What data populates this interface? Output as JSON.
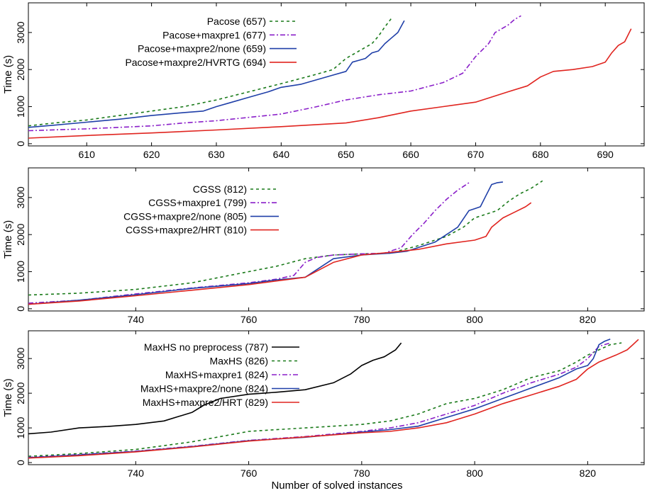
{
  "xlabel": "Number of solved instances",
  "chart_data": [
    {
      "type": "line",
      "ylabel": "Time (s)",
      "xlim": [
        601,
        696
      ],
      "ylim": [
        -60,
        3800
      ],
      "xticks": [
        610,
        620,
        630,
        640,
        650,
        660,
        670,
        680,
        690
      ],
      "yticks": [
        0,
        1000,
        2000,
        3000
      ],
      "legend": "top-left",
      "series": [
        {
          "name": "Pacose (657)",
          "color": "#1a7a1a",
          "dash": "4,4",
          "x": [
            601,
            605,
            610,
            615,
            620,
            625,
            630,
            635,
            640,
            645,
            648,
            650,
            652,
            654,
            655,
            656,
            657
          ],
          "y": [
            480,
            560,
            640,
            760,
            880,
            1000,
            1180,
            1400,
            1620,
            1850,
            2000,
            2300,
            2500,
            2700,
            2900,
            3150,
            3380
          ]
        },
        {
          "name": "Pacose+maxpre1 (677)",
          "color": "#8a1fc9",
          "dash": "7,3,2,3",
          "x": [
            601,
            610,
            620,
            625,
            630,
            640,
            645,
            650,
            655,
            660,
            665,
            668,
            670,
            672,
            673,
            675,
            676,
            677
          ],
          "y": [
            350,
            400,
            480,
            560,
            620,
            800,
            980,
            1180,
            1320,
            1420,
            1650,
            1900,
            2350,
            2700,
            3000,
            3200,
            3350,
            3450
          ]
        },
        {
          "name": "Pacose+maxpre2/none (659)",
          "color": "#1f3fa8",
          "dash": "",
          "x": [
            601,
            605,
            610,
            615,
            620,
            625,
            628,
            630,
            632,
            635,
            638,
            640,
            643,
            645,
            648,
            650,
            651,
            652,
            653,
            654,
            655,
            656,
            657,
            658,
            659
          ],
          "y": [
            440,
            500,
            580,
            660,
            760,
            840,
            880,
            1000,
            1100,
            1250,
            1400,
            1520,
            1600,
            1700,
            1850,
            1950,
            2200,
            2250,
            2300,
            2450,
            2500,
            2700,
            2850,
            3000,
            3320
          ]
        },
        {
          "name": "Pacose+maxpre2/HVRTG (694)",
          "color": "#e0241f",
          "dash": "",
          "x": [
            601,
            610,
            620,
            630,
            640,
            650,
            655,
            660,
            665,
            670,
            675,
            678,
            680,
            682,
            685,
            688,
            690,
            691,
            692,
            693,
            694
          ],
          "y": [
            150,
            220,
            290,
            370,
            460,
            560,
            700,
            880,
            1000,
            1120,
            1400,
            1560,
            1800,
            1950,
            2000,
            2080,
            2200,
            2450,
            2650,
            2750,
            3100
          ]
        }
      ]
    },
    {
      "type": "line",
      "ylabel": "Time (s)",
      "xlim": [
        721,
        830
      ],
      "ylim": [
        -60,
        3800
      ],
      "xticks": [
        740,
        760,
        780,
        800,
        820
      ],
      "yticks": [
        0,
        1000,
        2000,
        3000
      ],
      "legend": "top-left",
      "series": [
        {
          "name": "CGSS (812)",
          "color": "#1a7a1a",
          "dash": "4,4",
          "x": [
            721,
            730,
            740,
            750,
            760,
            765,
            770,
            775,
            780,
            785,
            790,
            795,
            798,
            800,
            804,
            806,
            808,
            810,
            812
          ],
          "y": [
            370,
            420,
            520,
            700,
            1000,
            1150,
            1350,
            1450,
            1480,
            1500,
            1700,
            1950,
            2200,
            2450,
            2650,
            2900,
            3100,
            3250,
            3450
          ]
        },
        {
          "name": "CGSS+maxpre1 (799)",
          "color": "#8a1fc9",
          "dash": "7,3,2,3",
          "x": [
            721,
            730,
            740,
            750,
            760,
            765,
            768,
            770,
            772,
            775,
            780,
            784,
            787,
            789,
            791,
            793,
            795,
            797,
            798,
            799
          ],
          "y": [
            150,
            230,
            400,
            560,
            700,
            800,
            900,
            1250,
            1380,
            1450,
            1480,
            1500,
            1650,
            2000,
            2300,
            2650,
            2950,
            3200,
            3300,
            3400
          ]
        },
        {
          "name": "CGSS+maxpre2/none (805)",
          "color": "#1f3fa8",
          "dash": "",
          "x": [
            721,
            730,
            740,
            750,
            760,
            765,
            770,
            772,
            775,
            780,
            785,
            788,
            790,
            793,
            795,
            797,
            799,
            800,
            801,
            802,
            803,
            804,
            805
          ],
          "y": [
            120,
            230,
            380,
            550,
            680,
            780,
            850,
            1050,
            1350,
            1450,
            1500,
            1550,
            1650,
            1800,
            2000,
            2200,
            2650,
            2700,
            2750,
            3050,
            3350,
            3400,
            3420
          ]
        },
        {
          "name": "CGSS+maxpre2/HRT (810)",
          "color": "#e0241f",
          "dash": "",
          "x": [
            721,
            730,
            740,
            750,
            760,
            765,
            770,
            775,
            780,
            785,
            790,
            795,
            800,
            802,
            803,
            805,
            807,
            809,
            810
          ],
          "y": [
            120,
            210,
            350,
            500,
            650,
            750,
            850,
            1250,
            1450,
            1520,
            1600,
            1750,
            1850,
            1950,
            2200,
            2450,
            2600,
            2750,
            2860
          ]
        }
      ]
    },
    {
      "type": "line",
      "ylabel": "Time (s)",
      "xlim": [
        721,
        830
      ],
      "ylim": [
        -60,
        3800
      ],
      "xticks": [
        740,
        760,
        780,
        800,
        820
      ],
      "yticks": [
        0,
        1000,
        2000,
        3000
      ],
      "legend": "top-left",
      "series": [
        {
          "name": "MaxHS no preprocess (787)",
          "color": "#000000",
          "dash": "",
          "x": [
            721,
            725,
            730,
            735,
            740,
            745,
            750,
            752,
            755,
            760,
            765,
            770,
            775,
            778,
            780,
            782,
            784,
            786,
            787
          ],
          "y": [
            830,
            880,
            1000,
            1040,
            1100,
            1200,
            1450,
            1650,
            1850,
            1970,
            2030,
            2100,
            2300,
            2550,
            2800,
            2950,
            3050,
            3250,
            3450
          ]
        },
        {
          "name": "MaxHS (826)",
          "color": "#1a7a1a",
          "dash": "4,4",
          "x": [
            721,
            730,
            740,
            750,
            760,
            770,
            780,
            785,
            790,
            795,
            800,
            805,
            810,
            815,
            818,
            820,
            822,
            824,
            826
          ],
          "y": [
            180,
            260,
            380,
            600,
            900,
            1000,
            1100,
            1200,
            1400,
            1700,
            1850,
            2100,
            2450,
            2650,
            2900,
            3100,
            3250,
            3400,
            3450
          ]
        },
        {
          "name": "MaxHS+maxpre1 (824)",
          "color": "#8a1fc9",
          "dash": "7,3,2,3",
          "x": [
            721,
            730,
            740,
            750,
            760,
            770,
            780,
            785,
            790,
            795,
            800,
            805,
            810,
            815,
            818,
            820,
            822,
            824
          ],
          "y": [
            150,
            230,
            330,
            470,
            640,
            750,
            900,
            1000,
            1150,
            1400,
            1650,
            2000,
            2300,
            2550,
            2750,
            3000,
            3350,
            3450
          ]
        },
        {
          "name": "MaxHS+maxpre2/none (824)",
          "color": "#1f3fa8",
          "dash": "",
          "x": [
            721,
            730,
            740,
            750,
            760,
            770,
            780,
            785,
            790,
            795,
            800,
            805,
            810,
            815,
            818,
            820,
            821,
            822,
            823,
            824
          ],
          "y": [
            140,
            220,
            320,
            460,
            630,
            730,
            880,
            950,
            1050,
            1300,
            1550,
            1850,
            2150,
            2450,
            2700,
            2800,
            3000,
            3400,
            3500,
            3560
          ]
        },
        {
          "name": "MaxHS+maxpre2/HRT (829)",
          "color": "#e0241f",
          "dash": "",
          "x": [
            721,
            730,
            740,
            750,
            760,
            770,
            780,
            785,
            790,
            795,
            800,
            805,
            810,
            815,
            818,
            820,
            822,
            825,
            827,
            828,
            829
          ],
          "y": [
            130,
            200,
            310,
            450,
            620,
            740,
            860,
            900,
            1000,
            1150,
            1400,
            1700,
            1950,
            2200,
            2400,
            2700,
            2900,
            3100,
            3250,
            3400,
            3550
          ]
        }
      ]
    }
  ]
}
